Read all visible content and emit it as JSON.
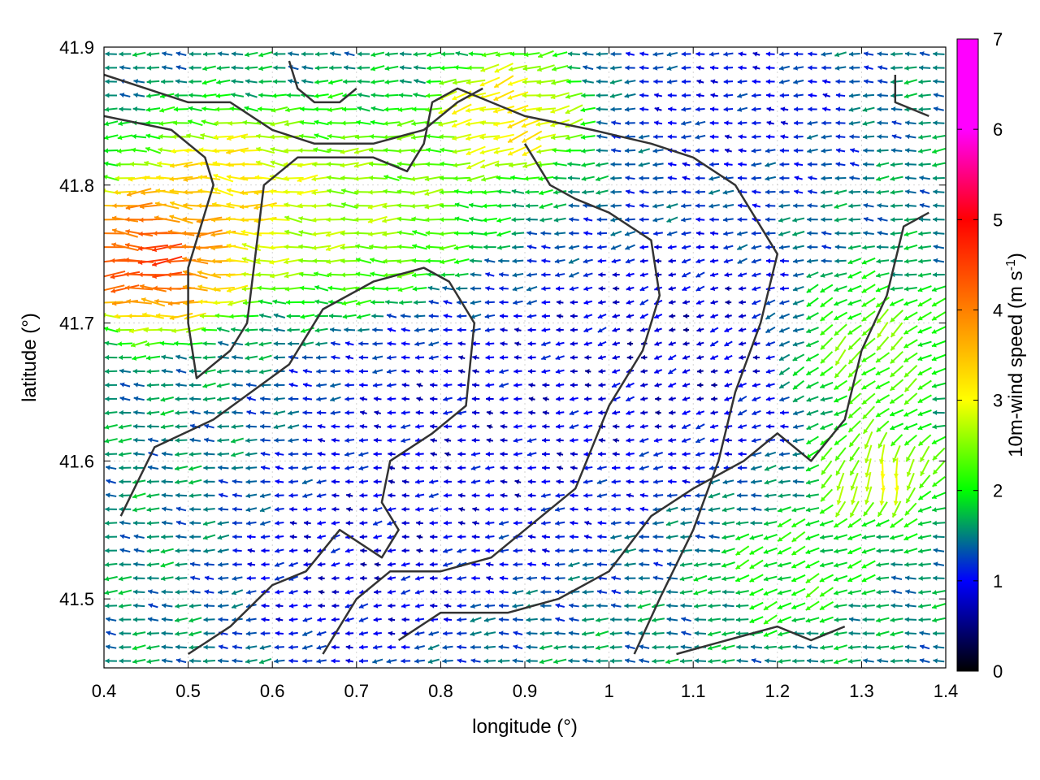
{
  "chart_data": {
    "type": "vector-field",
    "title": "",
    "xlabel": "longitude (°)",
    "ylabel": "latitude (°)",
    "xlim": [
      0.4,
      1.4
    ],
    "ylim": [
      41.45,
      41.9
    ],
    "xticks": [
      0.4,
      0.5,
      0.6,
      0.7,
      0.8,
      0.9,
      1.0,
      1.1,
      1.2,
      1.3,
      1.4
    ],
    "xtick_labels": [
      "0.4",
      "0.5",
      "0.6",
      "0.7",
      "0.8",
      "0.9",
      "1",
      "1.1",
      "1.2",
      "1.3",
      "1.4"
    ],
    "yticks": [
      41.5,
      41.6,
      41.7,
      41.8,
      41.9
    ],
    "ytick_labels": [
      "41.5",
      "41.6",
      "41.7",
      "41.8",
      "41.9"
    ],
    "grid": true,
    "colorbar": {
      "label_main": "10m-wind speed (m s",
      "label_sup": "-1",
      "label_end": ")",
      "range": [
        0,
        7
      ],
      "ticks": [
        0,
        1,
        2,
        3,
        4,
        5,
        6,
        7
      ],
      "tick_labels": [
        "0",
        "1",
        "2",
        "3",
        "4",
        "5",
        "6",
        "7"
      ],
      "colors": [
        "#000000",
        "#0000ff",
        "#00ff00",
        "#ffff00",
        "#ff8000",
        "#ff0000",
        "#ff00ff"
      ]
    },
    "wind_regions": [
      {
        "lon": 0.46,
        "lat": 41.75,
        "speed": 5.8,
        "dir": 180,
        "r": 0.07
      },
      {
        "lon": 0.55,
        "lat": 41.79,
        "speed": 4.2,
        "dir": 175,
        "r": 0.08
      },
      {
        "lon": 0.7,
        "lat": 41.78,
        "speed": 3.2,
        "dir": 180,
        "r": 0.1
      },
      {
        "lon": 0.88,
        "lat": 41.85,
        "speed": 4.0,
        "dir": 200,
        "r": 0.06
      },
      {
        "lon": 1.3,
        "lat": 41.68,
        "speed": 3.0,
        "dir": 230,
        "r": 0.07
      },
      {
        "lon": 1.32,
        "lat": 41.59,
        "speed": 3.5,
        "dir": 270,
        "r": 0.05
      },
      {
        "lon": 0.85,
        "lat": 41.62,
        "speed": 0.9,
        "dir": 180,
        "r": 0.15
      },
      {
        "lon": 1.08,
        "lat": 41.68,
        "speed": 0.8,
        "dir": 200,
        "r": 0.12
      },
      {
        "lon": 0.7,
        "lat": 41.52,
        "speed": 0.9,
        "dir": 190,
        "r": 0.1
      },
      {
        "lon": 1.15,
        "lat": 41.86,
        "speed": 1.1,
        "dir": 180,
        "r": 0.1
      },
      {
        "lon": 1.22,
        "lat": 41.52,
        "speed": 2.5,
        "dir": 210,
        "r": 0.06
      }
    ],
    "base_speed": 1.8,
    "base_dir": 180,
    "contours": [
      [
        [
          0.4,
          41.85
        ],
        [
          0.48,
          41.84
        ],
        [
          0.52,
          41.82
        ],
        [
          0.53,
          41.8
        ],
        [
          0.52,
          41.78
        ],
        [
          0.5,
          41.74
        ],
        [
          0.5,
          41.7
        ],
        [
          0.51,
          41.66
        ],
        [
          0.55,
          41.68
        ],
        [
          0.57,
          41.7
        ],
        [
          0.58,
          41.75
        ],
        [
          0.59,
          41.8
        ],
        [
          0.63,
          41.82
        ],
        [
          0.72,
          41.82
        ],
        [
          0.76,
          41.81
        ],
        [
          0.78,
          41.83
        ],
        [
          0.79,
          41.86
        ],
        [
          0.82,
          41.87
        ],
        [
          0.86,
          41.86
        ],
        [
          0.9,
          41.85
        ],
        [
          0.98,
          41.84
        ],
        [
          1.05,
          41.83
        ],
        [
          1.1,
          41.82
        ],
        [
          1.15,
          41.8
        ],
        [
          1.18,
          41.77
        ],
        [
          1.2,
          41.75
        ],
        [
          1.18,
          41.7
        ],
        [
          1.15,
          41.65
        ],
        [
          1.13,
          41.6
        ],
        [
          1.1,
          41.55
        ],
        [
          1.06,
          41.5
        ],
        [
          1.03,
          41.46
        ]
      ],
      [
        [
          0.42,
          41.56
        ],
        [
          0.46,
          41.61
        ],
        [
          0.53,
          41.63
        ],
        [
          0.62,
          41.67
        ],
        [
          0.66,
          41.71
        ],
        [
          0.72,
          41.73
        ],
        [
          0.78,
          41.74
        ],
        [
          0.81,
          41.73
        ],
        [
          0.84,
          41.7
        ],
        [
          0.83,
          41.64
        ],
        [
          0.79,
          41.62
        ],
        [
          0.74,
          41.6
        ],
        [
          0.73,
          41.57
        ],
        [
          0.75,
          41.55
        ],
        [
          0.73,
          41.53
        ],
        [
          0.68,
          41.55
        ],
        [
          0.64,
          41.52
        ],
        [
          0.6,
          41.51
        ],
        [
          0.55,
          41.48
        ],
        [
          0.5,
          41.46
        ]
      ],
      [
        [
          0.4,
          41.88
        ],
        [
          0.45,
          41.87
        ],
        [
          0.5,
          41.86
        ],
        [
          0.55,
          41.86
        ],
        [
          0.6,
          41.84
        ],
        [
          0.65,
          41.83
        ],
        [
          0.72,
          41.83
        ],
        [
          0.78,
          41.84
        ],
        [
          0.82,
          41.86
        ],
        [
          0.85,
          41.87
        ]
      ],
      [
        [
          0.66,
          41.46
        ],
        [
          0.7,
          41.5
        ],
        [
          0.74,
          41.52
        ],
        [
          0.8,
          41.52
        ],
        [
          0.86,
          41.53
        ],
        [
          0.9,
          41.55
        ],
        [
          0.96,
          41.58
        ],
        [
          1.0,
          41.64
        ],
        [
          1.04,
          41.68
        ],
        [
          1.06,
          41.72
        ],
        [
          1.05,
          41.76
        ],
        [
          1.0,
          41.78
        ],
        [
          0.96,
          41.79
        ],
        [
          0.93,
          41.8
        ],
        [
          0.9,
          41.83
        ]
      ],
      [
        [
          0.75,
          41.47
        ],
        [
          0.8,
          41.49
        ],
        [
          0.88,
          41.49
        ],
        [
          0.94,
          41.5
        ],
        [
          1.0,
          41.52
        ],
        [
          1.05,
          41.56
        ],
        [
          1.1,
          41.58
        ],
        [
          1.16,
          41.6
        ],
        [
          1.2,
          41.62
        ],
        [
          1.24,
          41.6
        ],
        [
          1.28,
          41.63
        ],
        [
          1.3,
          41.68
        ],
        [
          1.33,
          41.72
        ],
        [
          1.35,
          41.77
        ],
        [
          1.38,
          41.78
        ]
      ],
      [
        [
          1.08,
          41.46
        ],
        [
          1.14,
          41.47
        ],
        [
          1.2,
          41.48
        ],
        [
          1.24,
          41.47
        ],
        [
          1.28,
          41.48
        ]
      ],
      [
        [
          0.62,
          41.89
        ],
        [
          0.63,
          41.87
        ],
        [
          0.65,
          41.86
        ],
        [
          0.68,
          41.86
        ],
        [
          0.7,
          41.87
        ]
      ],
      [
        [
          1.34,
          41.88
        ],
        [
          1.34,
          41.86
        ],
        [
          1.38,
          41.85
        ]
      ]
    ]
  }
}
